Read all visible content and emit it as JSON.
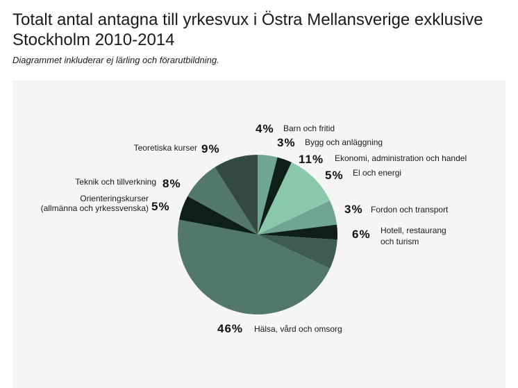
{
  "title": "Totalt antal antagna till yrkesvux i Östra Mellansverige exklusive Stockholm 2010-2014",
  "subtitle": "Diagrammet inkluderar ej lärling och förarutbildning.",
  "chart_data": {
    "type": "pie",
    "title": "Totalt antal antagna till yrkesvux i Östra Mellansverige exklusive Stockholm 2010-2014",
    "subtitle": "Diagrammet inkluderar ej lärling och förarutbildning.",
    "unit": "%",
    "start": "12 o'clock, clockwise",
    "slices": [
      {
        "label": "Barn och fritid",
        "pct_label": "4%",
        "value": 4,
        "color": "#6fa592"
      },
      {
        "label": "Bygg och anläggning",
        "pct_label": "3%",
        "value": 3,
        "color": "#0e1f19"
      },
      {
        "label": "Ekonomi, administration och handel",
        "pct_label": "11%",
        "value": 11,
        "color": "#8ac8ae"
      },
      {
        "label": "El och energi",
        "pct_label": "5%",
        "value": 5,
        "color": "#6fa592"
      },
      {
        "label": "Fordon och transport",
        "pct_label": "3%",
        "value": 3,
        "color": "#0e1f19"
      },
      {
        "label": "Hotell, restaurang och turism",
        "pct_label": "6%",
        "value": 6,
        "color": "#3f5c52"
      },
      {
        "label": "Hälsa, vård och omsorg",
        "pct_label": "46%",
        "value": 46,
        "color": "#51786a"
      },
      {
        "label": "Orienteringskurser (allmänna och yrkessvenska)",
        "pct_label": "5%",
        "value": 5,
        "color": "#0e1f19"
      },
      {
        "label": "Teknik och tillverkning",
        "pct_label": "8%",
        "value": 8,
        "color": "#51786a"
      },
      {
        "label": "Teoretiska kurser",
        "pct_label": "9%",
        "value": 9,
        "color": "#324a42"
      }
    ]
  }
}
